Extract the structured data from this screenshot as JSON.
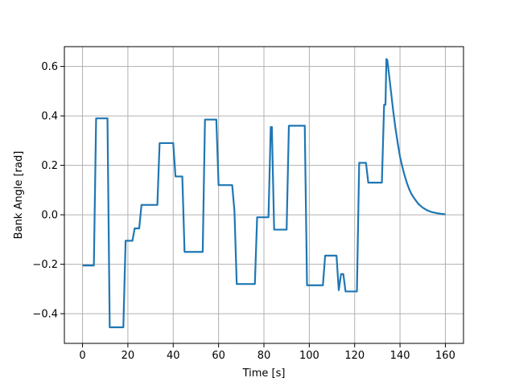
{
  "chart_data": {
    "type": "line",
    "title": "",
    "xlabel": "Time [s]",
    "ylabel": "Bank Angle [rad]",
    "xlim": [
      -8,
      168
    ],
    "ylim": [
      -0.52,
      0.68
    ],
    "xticks": [
      0,
      20,
      40,
      60,
      80,
      100,
      120,
      140,
      160
    ],
    "yticks": [
      -0.4,
      -0.2,
      0.0,
      0.2,
      0.4,
      0.6
    ],
    "xtick_labels": [
      "0",
      "20",
      "40",
      "60",
      "80",
      "100",
      "120",
      "140",
      "160"
    ],
    "ytick_labels": [
      "−0.4",
      "−0.2",
      "0.0",
      "0.2",
      "0.4",
      "0.6"
    ],
    "grid": true,
    "legend": "none",
    "colors": {
      "series": "#1f77b4"
    },
    "series": [
      {
        "points": [
          [
            0,
            -0.205
          ],
          [
            5,
            -0.205
          ],
          [
            6,
            0.39
          ],
          [
            11,
            0.39
          ],
          [
            12,
            -0.455
          ],
          [
            18,
            -0.455
          ],
          [
            19,
            -0.105
          ],
          [
            22,
            -0.105
          ],
          [
            23,
            -0.055
          ],
          [
            25,
            -0.055
          ],
          [
            26,
            0.04
          ],
          [
            33,
            0.04
          ],
          [
            34,
            0.29
          ],
          [
            40,
            0.29
          ],
          [
            41,
            0.155
          ],
          [
            44,
            0.155
          ],
          [
            45,
            -0.15
          ],
          [
            53,
            -0.15
          ],
          [
            54,
            0.385
          ],
          [
            59,
            0.385
          ],
          [
            60,
            0.12
          ],
          [
            66,
            0.12
          ],
          [
            67,
            0.015
          ],
          [
            68,
            -0.28
          ],
          [
            76,
            -0.28
          ],
          [
            77,
            -0.01
          ],
          [
            82,
            -0.01
          ],
          [
            83,
            0.355
          ],
          [
            83.5,
            0.355
          ],
          [
            84.5,
            -0.06
          ],
          [
            90,
            -0.06
          ],
          [
            91,
            0.36
          ],
          [
            98,
            0.36
          ],
          [
            99,
            -0.285
          ],
          [
            106,
            -0.285
          ],
          [
            107,
            -0.165
          ],
          [
            112,
            -0.165
          ],
          [
            113,
            -0.305
          ],
          [
            114,
            -0.24
          ],
          [
            115,
            -0.24
          ],
          [
            116,
            -0.31
          ],
          [
            121,
            -0.31
          ],
          [
            122,
            0.21
          ],
          [
            125,
            0.21
          ],
          [
            126,
            0.13
          ],
          [
            132,
            0.13
          ],
          [
            133,
            0.445
          ],
          [
            133.6,
            0.445
          ],
          [
            134,
            0.63
          ],
          [
            134.4,
            0.626
          ],
          [
            135,
            0.58
          ],
          [
            136,
            0.5
          ],
          [
            137,
            0.42
          ],
          [
            138,
            0.35
          ],
          [
            139,
            0.29
          ],
          [
            140,
            0.235
          ],
          [
            141,
            0.195
          ],
          [
            142,
            0.16
          ],
          [
            143,
            0.13
          ],
          [
            144,
            0.105
          ],
          [
            145,
            0.085
          ],
          [
            146,
            0.07
          ],
          [
            148,
            0.045
          ],
          [
            150,
            0.029
          ],
          [
            152,
            0.018
          ],
          [
            154,
            0.011
          ],
          [
            156,
            0.007
          ],
          [
            158,
            0.004
          ],
          [
            160,
            0.002
          ]
        ]
      }
    ]
  }
}
